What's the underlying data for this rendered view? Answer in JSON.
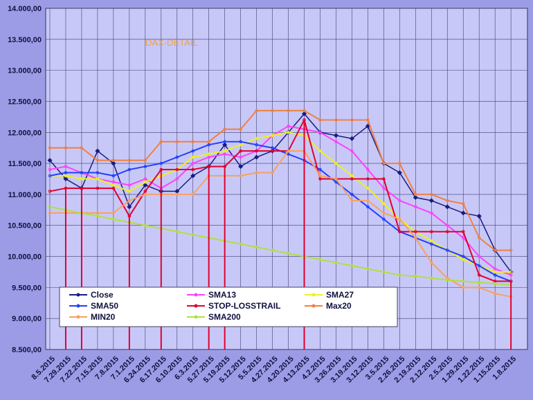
{
  "chart_data": {
    "type": "line",
    "title": "DAX-DETAIL",
    "xlabel": "",
    "ylabel": "",
    "ylim": [
      8500,
      14000
    ],
    "yticks": [
      "14.000,00",
      "13.500,00",
      "13.000,00",
      "12.500,00",
      "12.000,00",
      "11.500,00",
      "11.000,00",
      "10.500,00",
      "10.000,00",
      "9.500,00",
      "9.000,00",
      "8.500,00"
    ],
    "categories": [
      "8.5.2015",
      "7.29.2015",
      "7.22.2015",
      "7.15.2015",
      "7.8.2015",
      "7.1.2015",
      "6.24.2015",
      "6.17.2015",
      "6.10.2015",
      "6.3.2015",
      "5.27.2015",
      "5.19.2015",
      "5.12.2015",
      "5.5.2015",
      "4.27.2015",
      "4.20.2015",
      "4.13.2015",
      "4.2.2015",
      "3.26.2015",
      "3.19.2015",
      "3.12.2015",
      "3.5.2015",
      "2.26.2015",
      "2.19.2015",
      "2.12.2015",
      "2.5.2015",
      "1.29.2015",
      "1.22.2015",
      "1.15.2015",
      "1.8.2015"
    ],
    "legend_position": "bottom-left",
    "series": [
      {
        "name": "Close",
        "color": "#1a1a80",
        "values": [
          11550,
          11250,
          11100,
          11700,
          11500,
          10800,
          11150,
          11050,
          11050,
          11300,
          11450,
          11800,
          11450,
          11600,
          11700,
          12000,
          12300,
          12000,
          11950,
          11900,
          12100,
          11500,
          11350,
          10950,
          10900,
          10800,
          10700,
          10650,
          10100,
          9750
        ]
      },
      {
        "name": "SMA13",
        "color": "#ff40ff",
        "values": [
          11400,
          11450,
          11350,
          11250,
          11200,
          11150,
          11250,
          11100,
          11250,
          11500,
          11600,
          11650,
          11600,
          11700,
          11950,
          12100,
          12050,
          12000,
          11850,
          11700,
          11400,
          11100,
          10900,
          10800,
          10700,
          10500,
          10300,
          10000,
          9800,
          9700
        ]
      },
      {
        "name": "SMA27",
        "color": "#f0f020",
        "values": [
          11300,
          11300,
          11250,
          11250,
          11150,
          11050,
          11200,
          11300,
          11400,
          11600,
          11650,
          11700,
          11800,
          11900,
          11950,
          12000,
          11950,
          11700,
          11500,
          11300,
          11100,
          10850,
          10600,
          10400,
          10250,
          10100,
          9950,
          9850,
          9750,
          9750
        ]
      },
      {
        "name": "SMA50",
        "color": "#2040ff",
        "values": [
          11300,
          11350,
          11350,
          11350,
          11300,
          11400,
          11450,
          11500,
          11600,
          11700,
          11800,
          11850,
          11850,
          11800,
          11750,
          11650,
          11550,
          11400,
          11200,
          11000,
          10800,
          10600,
          10400,
          10300,
          10200,
          10100,
          10000,
          9850,
          9700,
          9600
        ]
      },
      {
        "name": "STOP-LOSSTRAIL",
        "color": "#e00030",
        "values": [
          11050,
          11100,
          11100,
          11100,
          11100,
          10650,
          11050,
          11400,
          11400,
          11400,
          11450,
          11450,
          11700,
          11700,
          11700,
          11700,
          12200,
          11250,
          11250,
          11250,
          11250,
          11250,
          10400,
          10400,
          10400,
          10400,
          10400,
          9700,
          9600,
          9600
        ]
      },
      {
        "name": "Max20",
        "color": "#f08040",
        "values": [
          11750,
          11750,
          11750,
          11550,
          11550,
          11550,
          11550,
          11850,
          11850,
          11850,
          11850,
          12050,
          12050,
          12350,
          12350,
          12350,
          12350,
          12200,
          12200,
          12200,
          12200,
          11500,
          11500,
          11000,
          11000,
          10900,
          10850,
          10300,
          10100,
          10100
        ]
      },
      {
        "name": "MIN20",
        "color": "#f8a060",
        "values": [
          10700,
          10700,
          10700,
          10700,
          10700,
          10900,
          11000,
          11000,
          11000,
          11000,
          11300,
          11300,
          11300,
          11350,
          11350,
          11700,
          11700,
          11300,
          11250,
          10900,
          10900,
          10700,
          10600,
          10300,
          9900,
          9650,
          9500,
          9500,
          9400,
          9350
        ]
      },
      {
        "name": "SMA200",
        "color": "#b0e040",
        "values": [
          10800,
          10750,
          10700,
          10650,
          10600,
          10550,
          10500,
          10450,
          10400,
          10350,
          10300,
          10250,
          10200,
          10150,
          10100,
          10050,
          10000,
          9950,
          9900,
          9850,
          9800,
          9750,
          9700,
          9680,
          9650,
          9620,
          9600,
          9580,
          9560,
          9540
        ]
      }
    ]
  }
}
